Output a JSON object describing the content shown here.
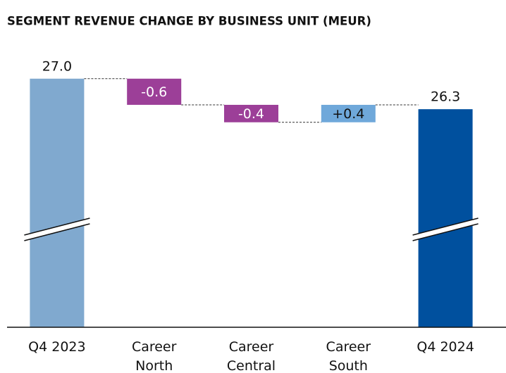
{
  "chart_data": {
    "type": "waterfall",
    "title": "SEGMENT REVENUE CHANGE BY BUSINESS UNIT (MEUR)",
    "categories": [
      "Q4 2023",
      "Career\nNorth",
      "Career\nCentral",
      "Career\nSouth",
      "Q4 2024"
    ],
    "measures": [
      "absolute",
      "relative",
      "relative",
      "relative",
      "total"
    ],
    "values": [
      27.0,
      -0.6,
      -0.4,
      0.4,
      26.3
    ],
    "value_labels": [
      "27.0",
      "-0.6",
      "-0.4",
      "+0.4",
      "26.3"
    ],
    "colors": [
      "#80a9cf",
      "#9c3f98",
      "#9c3f98",
      "#6fa8da",
      "#00509e"
    ],
    "ylim": [
      21.3,
      27.4
    ],
    "axis_break": true
  }
}
